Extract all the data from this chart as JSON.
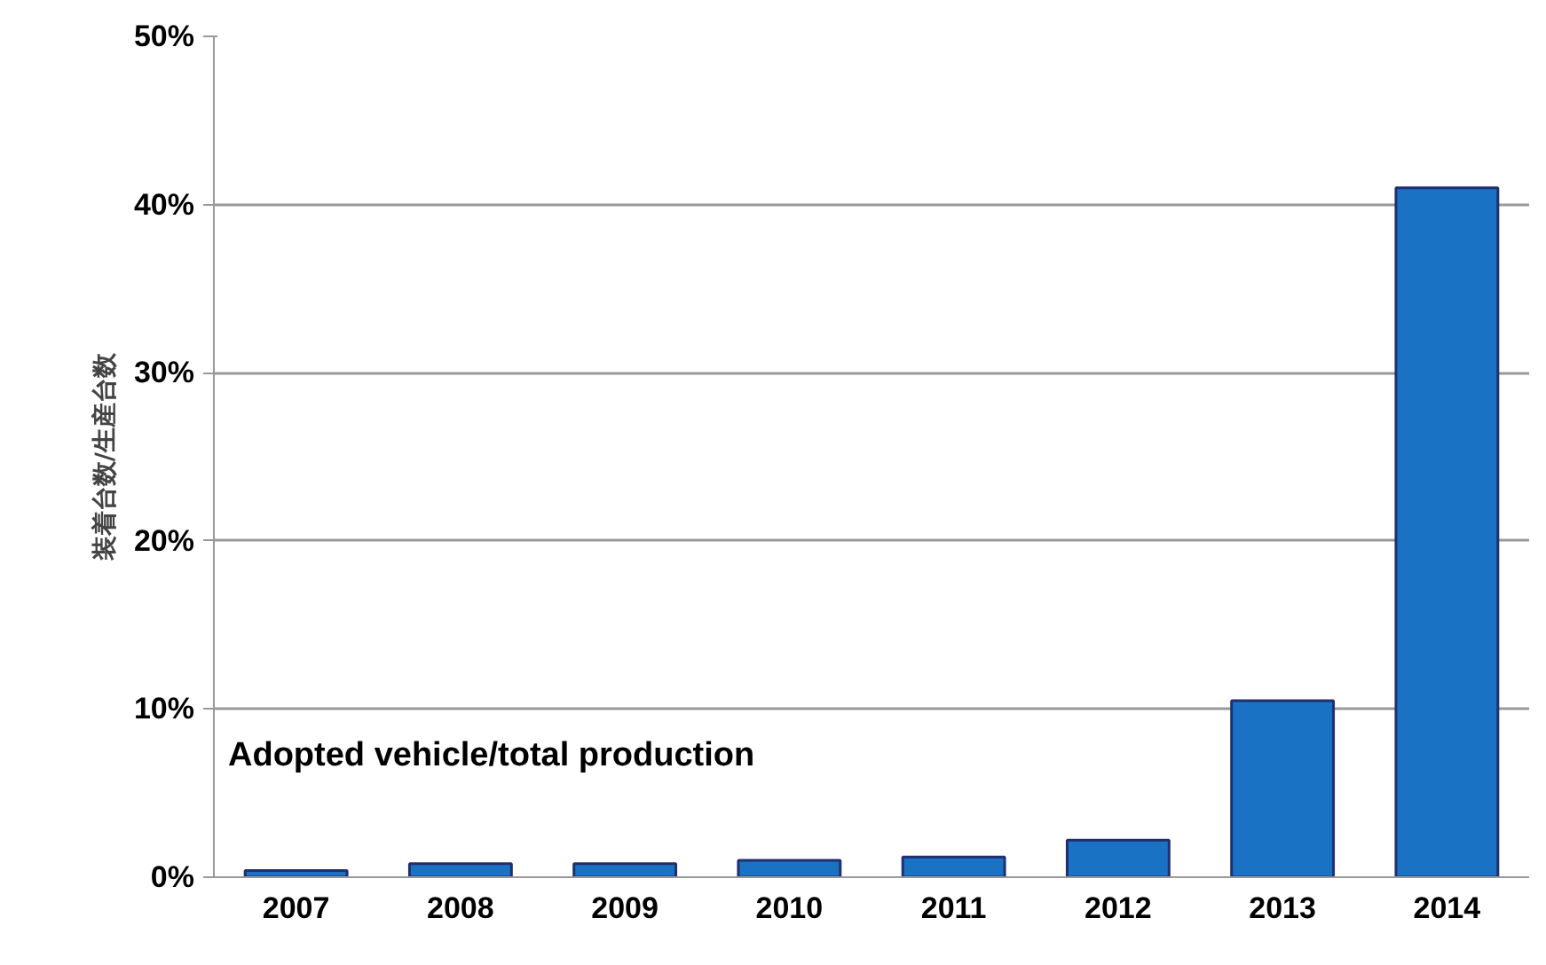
{
  "chart_data": {
    "type": "bar",
    "ylabel": "装着台数/生産台数",
    "categories": [
      "2007",
      "2008",
      "2009",
      "2010",
      "2011",
      "2012",
      "2013",
      "2014"
    ],
    "values": [
      0.4,
      0.8,
      0.8,
      1.0,
      1.2,
      2.2,
      10.5,
      41.0
    ],
    "color": "#1a72c4",
    "ylim": [
      0,
      50
    ],
    "yticks": [
      {
        "value": 0,
        "label": "0%"
      },
      {
        "value": 10,
        "label": "10%"
      },
      {
        "value": 20,
        "label": "20%"
      },
      {
        "value": 30,
        "label": "30%"
      },
      {
        "value": 40,
        "label": "40%"
      },
      {
        "value": 50,
        "label": "50%"
      }
    ],
    "grid": "y",
    "annotations": [
      "Adopted vehicle/total production"
    ]
  }
}
